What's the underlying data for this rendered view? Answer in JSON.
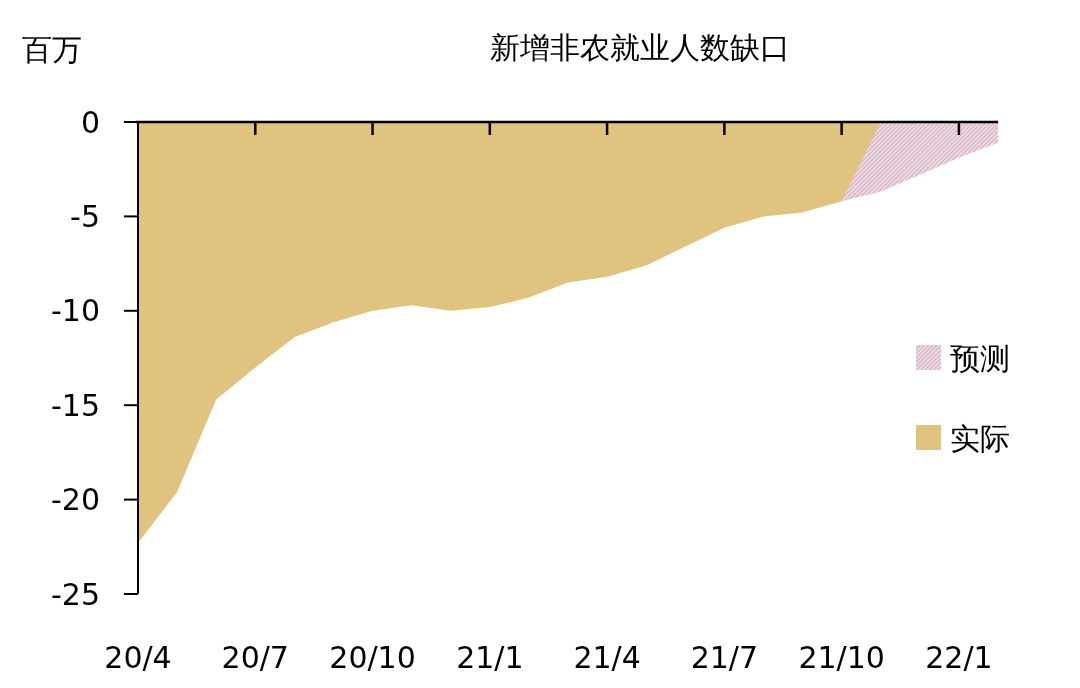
{
  "chart_data": {
    "type": "area",
    "title": "新增非农就业人数缺口",
    "ylabel": "百万",
    "categories": [
      "20/4",
      null,
      null,
      "20/7",
      null,
      null,
      "20/10",
      null,
      null,
      "21/1",
      null,
      null,
      "21/4",
      null,
      null,
      "21/7",
      null,
      null,
      "21/10",
      null,
      null,
      "22/1",
      null
    ],
    "series": [
      {
        "name": "预测",
        "color": "#d4aec2",
        "values": [
          null,
          null,
          null,
          null,
          null,
          null,
          null,
          null,
          null,
          null,
          null,
          null,
          null,
          null,
          null,
          null,
          null,
          null,
          -4.2,
          -3.7,
          -2.8,
          -1.9,
          -1.1
        ]
      },
      {
        "name": "实际",
        "color": "#dfc37e",
        "values": [
          -22.3,
          -19.6,
          -14.7,
          -13.0,
          -11.4,
          -10.6,
          -10.0,
          -9.7,
          -10.0,
          -9.8,
          -9.3,
          -8.5,
          -8.2,
          -7.6,
          -6.6,
          -5.6,
          -5.0,
          -4.8,
          -4.2,
          0,
          null,
          null,
          null
        ]
      }
    ],
    "ylim": [
      -25,
      0
    ],
    "yticks": [
      0,
      -5,
      -10,
      -15,
      -20,
      -25
    ],
    "legend": "right"
  }
}
